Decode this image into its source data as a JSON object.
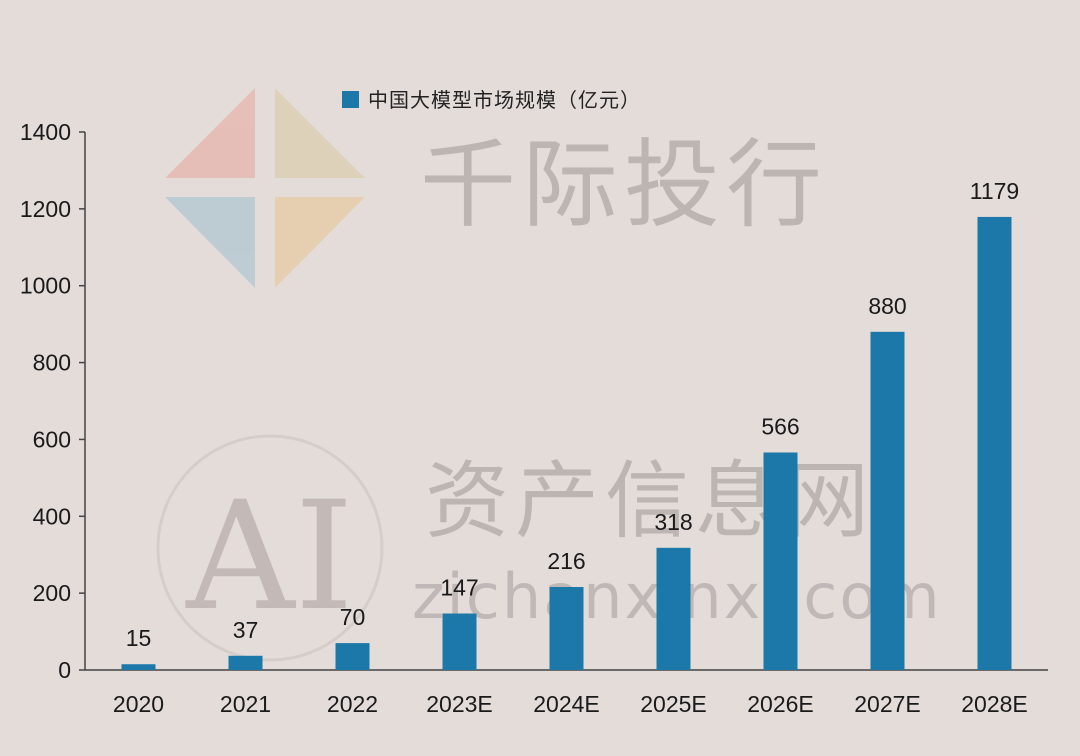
{
  "watermarks": {
    "brand_top": "千际投行",
    "brand_mid": "资产信息网",
    "brand_url": "zichanxinxi.com",
    "brand_logo_text": "AI"
  },
  "chart_data": {
    "type": "bar",
    "title": "",
    "legend": {
      "label": "中国大模型市场规模（亿元）",
      "placement": "top-center"
    },
    "categories": [
      "2020",
      "2021",
      "2022",
      "2023E",
      "2024E",
      "2025E",
      "2026E",
      "2027E",
      "2028E"
    ],
    "series": [
      {
        "name": "中国大模型市场规模（亿元）",
        "values": [
          15,
          37,
          70,
          147,
          216,
          318,
          566,
          880,
          1179
        ],
        "color": "#1b78a8"
      }
    ],
    "data_labels": [
      "15",
      "37",
      "70",
      "147",
      "216",
      "318",
      "566",
      "880",
      "1179"
    ],
    "yticks": [
      "0",
      "200",
      "400",
      "600",
      "800",
      "1000",
      "1200",
      "1400"
    ],
    "ylim": [
      0,
      1400
    ],
    "xlabel": "",
    "ylabel": "",
    "grid": false
  }
}
